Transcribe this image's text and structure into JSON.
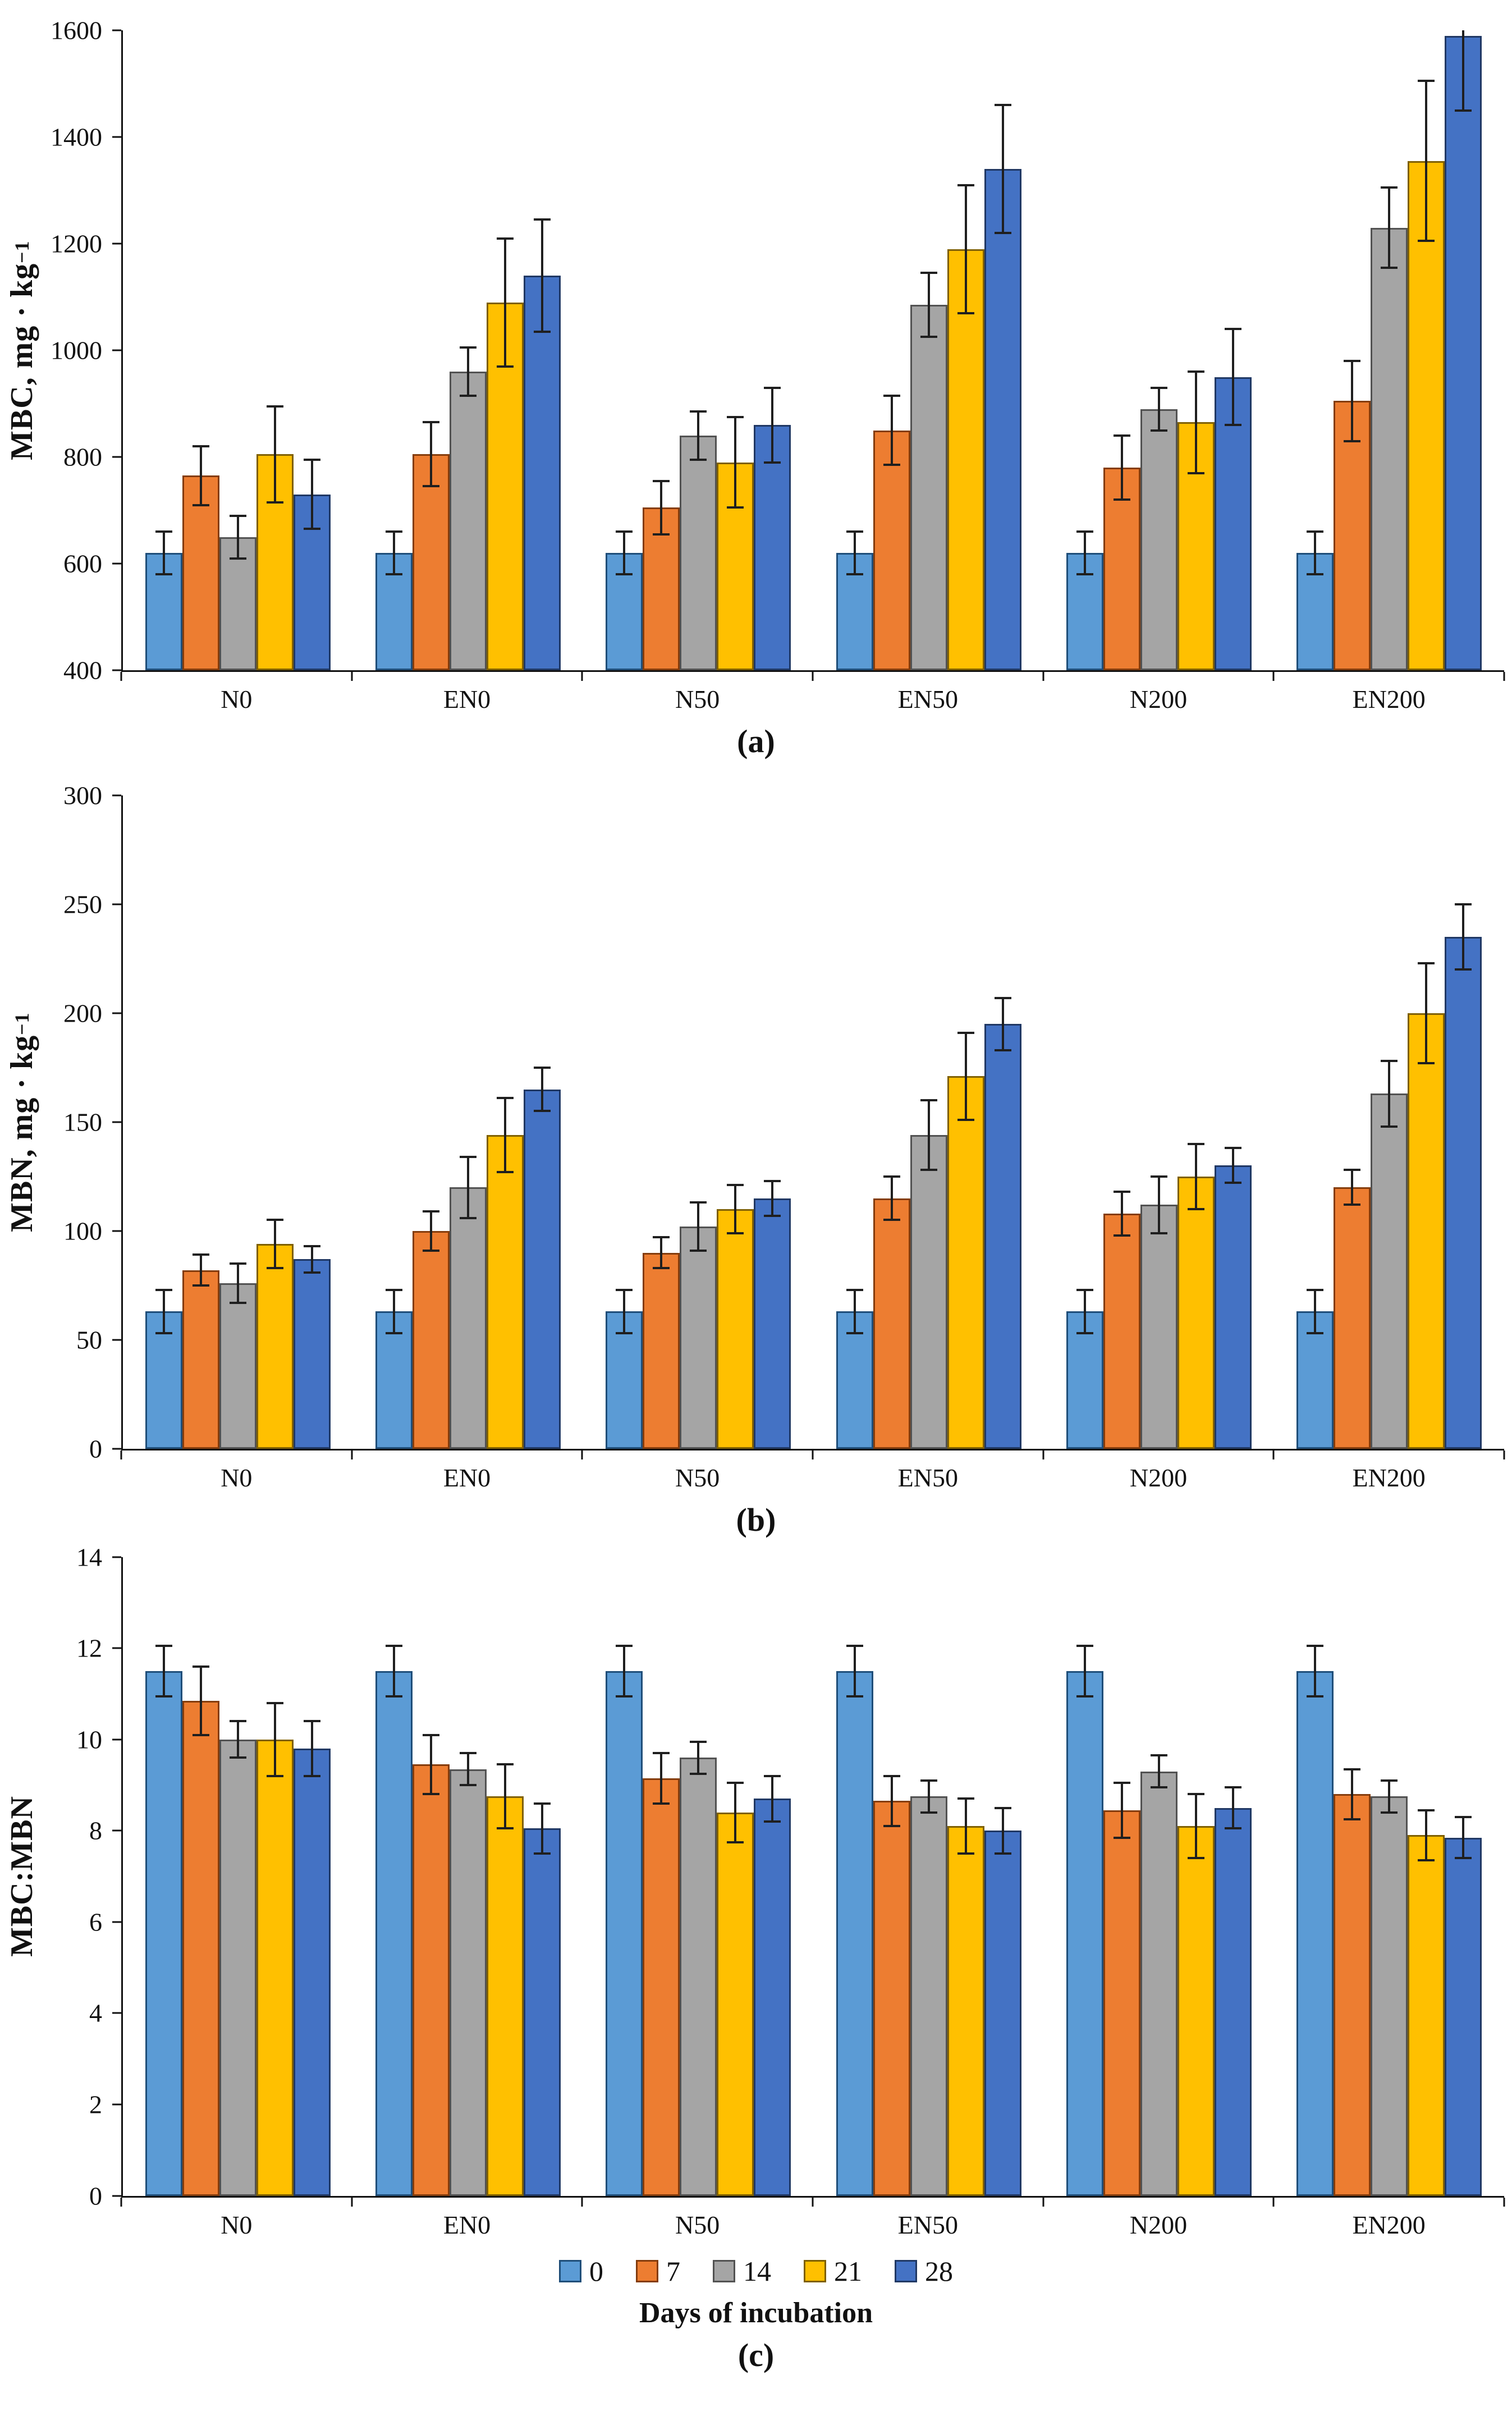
{
  "figure": {
    "captions": {
      "a": "(a)",
      "b": "(b)",
      "c": "(c)"
    },
    "legend": {
      "title": "Days of incubation",
      "items": [
        {
          "label": "0",
          "color": "#5B9BD5",
          "border": "#1F4E79"
        },
        {
          "label": "7",
          "color": "#ED7D31",
          "border": "#843C0C"
        },
        {
          "label": "14",
          "color": "#A5A5A5",
          "border": "#525252"
        },
        {
          "label": "21",
          "color": "#FFC000",
          "border": "#7F6000"
        },
        {
          "label": "28",
          "color": "#4472C4",
          "border": "#203864"
        }
      ]
    },
    "error_bar_color": "#1f1f1f",
    "axis_color": "#111111"
  },
  "chart_data": [
    {
      "type": "bar",
      "panel": "a",
      "caption": "(a)",
      "ylabel": "MBC, mg · kg",
      "ylabel_sup": "−1",
      "ylim": [
        400,
        1600
      ],
      "ytick_step": 200,
      "legend_position": "none",
      "grid": false,
      "categories": [
        "N0",
        "EN0",
        "N50",
        "EN50",
        "N200",
        "EN200"
      ],
      "series": [
        {
          "name": "0",
          "color": "#5B9BD5",
          "border": "#1F4E79",
          "values": [
            620,
            620,
            620,
            620,
            620,
            620
          ],
          "errors": [
            40,
            40,
            40,
            40,
            40,
            40
          ]
        },
        {
          "name": "7",
          "color": "#ED7D31",
          "border": "#843C0C",
          "values": [
            765,
            805,
            705,
            850,
            780,
            905
          ],
          "errors": [
            55,
            60,
            50,
            65,
            60,
            75
          ]
        },
        {
          "name": "14",
          "color": "#A5A5A5",
          "border": "#525252",
          "values": [
            650,
            960,
            840,
            1085,
            890,
            1230
          ],
          "errors": [
            40,
            45,
            45,
            60,
            40,
            75
          ]
        },
        {
          "name": "21",
          "color": "#FFC000",
          "border": "#7F6000",
          "values": [
            805,
            1090,
            790,
            1190,
            865,
            1355
          ],
          "errors": [
            90,
            120,
            85,
            120,
            95,
            150
          ]
        },
        {
          "name": "28",
          "color": "#4472C4",
          "border": "#203864",
          "values": [
            730,
            1140,
            860,
            1340,
            950,
            1590
          ],
          "errors": [
            65,
            105,
            70,
            120,
            90,
            140
          ]
        }
      ]
    },
    {
      "type": "bar",
      "panel": "b",
      "caption": "(b)",
      "ylabel": "MBN, mg · kg",
      "ylabel_sup": "−1",
      "ylim": [
        0,
        300
      ],
      "ytick_step": 50,
      "legend_position": "none",
      "grid": false,
      "categories": [
        "N0",
        "EN0",
        "N50",
        "EN50",
        "N200",
        "EN200"
      ],
      "series": [
        {
          "name": "0",
          "color": "#5B9BD5",
          "border": "#1F4E79",
          "values": [
            63,
            63,
            63,
            63,
            63,
            63
          ],
          "errors": [
            10,
            10,
            10,
            10,
            10,
            10
          ]
        },
        {
          "name": "7",
          "color": "#ED7D31",
          "border": "#843C0C",
          "values": [
            82,
            100,
            90,
            115,
            108,
            120
          ],
          "errors": [
            7,
            9,
            7,
            10,
            10,
            8
          ]
        },
        {
          "name": "14",
          "color": "#A5A5A5",
          "border": "#525252",
          "values": [
            76,
            120,
            102,
            144,
            112,
            163
          ],
          "errors": [
            9,
            14,
            11,
            16,
            13,
            15
          ]
        },
        {
          "name": "21",
          "color": "#FFC000",
          "border": "#7F6000",
          "values": [
            94,
            144,
            110,
            171,
            125,
            200
          ],
          "errors": [
            11,
            17,
            11,
            20,
            15,
            23
          ]
        },
        {
          "name": "28",
          "color": "#4472C4",
          "border": "#203864",
          "values": [
            87,
            165,
            115,
            195,
            130,
            235
          ],
          "errors": [
            6,
            10,
            8,
            12,
            8,
            15
          ]
        }
      ]
    },
    {
      "type": "bar",
      "panel": "c",
      "caption": "(c)",
      "ylabel": "MBC:MBN",
      "ylabel_sup": "",
      "ylim": [
        0,
        14
      ],
      "ytick_step": 2,
      "legend_position": "bottom",
      "grid": false,
      "xlabel": "Days of incubation",
      "categories": [
        "N0",
        "EN0",
        "N50",
        "EN50",
        "N200",
        "EN200"
      ],
      "series": [
        {
          "name": "0",
          "color": "#5B9BD5",
          "border": "#1F4E79",
          "values": [
            11.5,
            11.5,
            11.5,
            11.5,
            11.5,
            11.5
          ],
          "errors": [
            0.55,
            0.55,
            0.55,
            0.55,
            0.55,
            0.55
          ]
        },
        {
          "name": "7",
          "color": "#ED7D31",
          "border": "#843C0C",
          "values": [
            10.85,
            9.45,
            9.15,
            8.65,
            8.45,
            8.8
          ],
          "errors": [
            0.75,
            0.65,
            0.55,
            0.55,
            0.6,
            0.55
          ]
        },
        {
          "name": "14",
          "color": "#A5A5A5",
          "border": "#525252",
          "values": [
            10.0,
            9.35,
            9.6,
            8.75,
            9.3,
            8.75
          ],
          "errors": [
            0.4,
            0.35,
            0.35,
            0.35,
            0.35,
            0.35
          ]
        },
        {
          "name": "21",
          "color": "#FFC000",
          "border": "#7F6000",
          "values": [
            10.0,
            8.75,
            8.4,
            8.1,
            8.1,
            7.9
          ],
          "errors": [
            0.8,
            0.7,
            0.65,
            0.6,
            0.7,
            0.55
          ]
        },
        {
          "name": "28",
          "color": "#4472C4",
          "border": "#203864",
          "values": [
            9.8,
            8.05,
            8.7,
            8.0,
            8.5,
            7.85
          ],
          "errors": [
            0.6,
            0.55,
            0.5,
            0.5,
            0.45,
            0.45
          ]
        }
      ]
    }
  ]
}
